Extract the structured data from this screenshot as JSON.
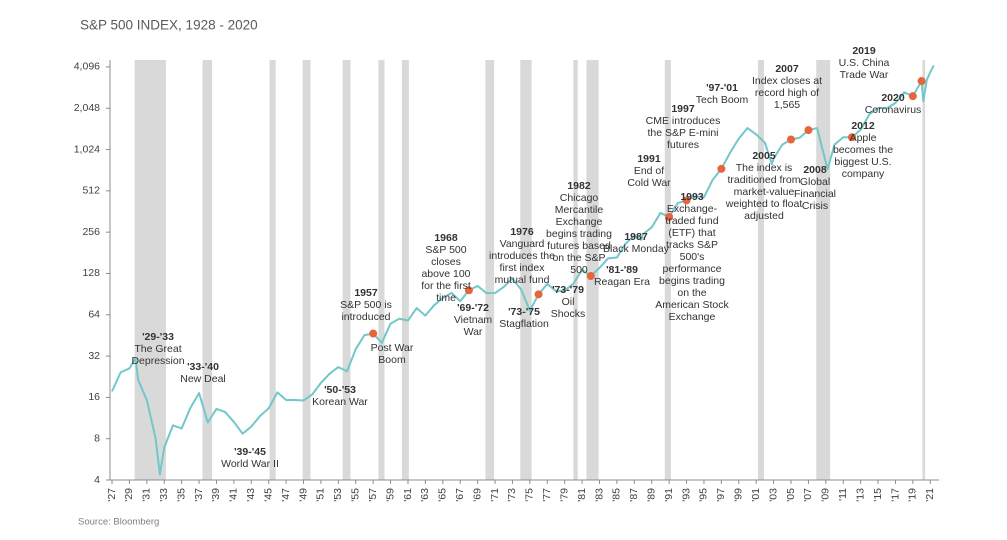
{
  "chart_data": {
    "type": "line",
    "title": "S&P 500 INDEX, 1928 - 2020",
    "source": "Source: Bloomberg",
    "log_scale": true,
    "color": "#72c7c9",
    "band_color": "#d9d9d9",
    "x": [
      1927,
      1928,
      1929,
      1929.7,
      1930,
      1931,
      1932,
      1932.5,
      1933,
      1934,
      1935,
      1936,
      1937,
      1938,
      1939,
      1940,
      1941,
      1942,
      1943,
      1944,
      1945,
      1946,
      1947,
      1948,
      1949,
      1950,
      1951,
      1952,
      1953,
      1954,
      1955,
      1956,
      1957,
      1958,
      1959,
      1960,
      1961,
      1962,
      1963,
      1964,
      1965,
      1966,
      1967,
      1968,
      1969,
      1970,
      1971,
      1972,
      1973,
      1974,
      1975,
      1976,
      1977,
      1978,
      1979,
      1980,
      1981,
      1982,
      1983,
      1984,
      1985,
      1986,
      1987,
      1987.8,
      1988,
      1989,
      1990,
      1991,
      1992,
      1993,
      1994,
      1995,
      1996,
      1997,
      1998,
      1999,
      2000,
      2001,
      2002,
      2002.8,
      2003,
      2004,
      2005,
      2006,
      2007,
      2008,
      2009.2,
      2010,
      2011,
      2012,
      2013,
      2014,
      2015,
      2016,
      2017,
      2018,
      2019,
      2020,
      2020.2,
      2020.6,
      2021,
      2021.4
    ],
    "values": [
      17.7,
      24.4,
      26,
      31,
      21.5,
      15.3,
      8.1,
      4.4,
      6.9,
      10,
      9.5,
      13.4,
      17.2,
      10.5,
      13.2,
      12.5,
      10.6,
      8.7,
      9.8,
      11.7,
      13.3,
      17.4,
      15.3,
      15.3,
      15.2,
      16.8,
      20.4,
      23.8,
      26.6,
      24.8,
      36,
      45.5,
      46.7,
      40,
      55.2,
      59.9,
      58.1,
      71.6,
      63.1,
      75,
      84.8,
      92.4,
      80.3,
      96.5,
      103.9,
      92.1,
      92.2,
      102.1,
      118,
      97.6,
      68.6,
      90.2,
      107.5,
      95.1,
      96.1,
      107.9,
      135.8,
      122.6,
      140.6,
      164.9,
      167.2,
      211.3,
      242.2,
      225,
      247.1,
      277.7,
      353.4,
      330.2,
      417.1,
      435.7,
      466.5,
      459.3,
      615.9,
      740.7,
      970.4,
      1229,
      1469,
      1320,
      1148,
      800,
      880,
      1112,
      1212,
      1248,
      1418,
      1468,
      735,
      1115,
      1258,
      1258,
      1426,
      1848,
      2059,
      2044,
      2239,
      2674,
      2507,
      3231,
      2300,
      3300,
      3756,
      4200
    ],
    "xlim": [
      1927,
      2022
    ],
    "ylim": [
      4,
      4600
    ],
    "yticks": [
      4,
      8,
      16,
      32,
      64,
      128,
      256,
      512,
      {
        "value": 1024,
        "label": "1,024"
      },
      {
        "value": 2048,
        "label": "2,048"
      },
      {
        "value": 4096,
        "label": "4,096"
      }
    ],
    "xticks": [
      {
        "value": 1927,
        "label": "'27"
      },
      {
        "value": 1929,
        "label": "'29"
      },
      {
        "value": 1931,
        "label": "'31"
      },
      {
        "value": 1933,
        "label": "'33"
      },
      {
        "value": 1935,
        "label": "'35"
      },
      {
        "value": 1937,
        "label": "'37"
      },
      {
        "value": 1939,
        "label": "'39"
      },
      {
        "value": 1941,
        "label": "'41"
      },
      {
        "value": 1943,
        "label": "'43"
      },
      {
        "value": 1945,
        "label": "'45"
      },
      {
        "value": 1947,
        "label": "'47"
      },
      {
        "value": 1949,
        "label": "'49"
      },
      {
        "value": 1951,
        "label": "'51"
      },
      {
        "value": 1953,
        "label": "'53"
      },
      {
        "value": 1955,
        "label": "'55"
      },
      {
        "value": 1957,
        "label": "'57"
      },
      {
        "value": 1959,
        "label": "'59"
      },
      {
        "value": 1961,
        "label": "'61"
      },
      {
        "value": 1963,
        "label": "'63"
      },
      {
        "value": 1965,
        "label": "'65"
      },
      {
        "value": 1967,
        "label": "'67"
      },
      {
        "value": 1969,
        "label": "'69"
      },
      {
        "value": 1971,
        "label": "'71"
      },
      {
        "value": 1973,
        "label": "'73"
      },
      {
        "value": 1975,
        "label": "'75"
      },
      {
        "value": 1977,
        "label": "'77"
      },
      {
        "value": 1979,
        "label": "'79"
      },
      {
        "value": 1981,
        "label": "'81"
      },
      {
        "value": 1983,
        "label": "'83"
      },
      {
        "value": 1985,
        "label": "'85"
      },
      {
        "value": 1987,
        "label": "'87"
      },
      {
        "value": 1989,
        "label": "'89"
      },
      {
        "value": 1991,
        "label": "'91"
      },
      {
        "value": 1993,
        "label": "'93"
      },
      {
        "value": 1995,
        "label": "'95"
      },
      {
        "value": 1997,
        "label": "'97"
      },
      {
        "value": 1999,
        "label": "'99"
      },
      {
        "value": 2001,
        "label": "'01"
      },
      {
        "value": 2003,
        "label": "'03"
      },
      {
        "value": 2005,
        "label": "'05"
      },
      {
        "value": 2007,
        "label": "'07"
      },
      {
        "value": 2009,
        "label": "'09"
      },
      {
        "value": 2011,
        "label": "'11"
      },
      {
        "value": 2013,
        "label": "'13"
      },
      {
        "value": 2015,
        "label": "'15"
      },
      {
        "value": 2017,
        "label": "'17"
      },
      {
        "value": 2019,
        "label": "'19"
      },
      {
        "value": 2021,
        "label": "'21"
      }
    ],
    "shaded_periods": [
      [
        1929.6,
        1933.2
      ],
      [
        1937.4,
        1938.5
      ],
      [
        1945.1,
        1945.8
      ],
      [
        1948.9,
        1949.8
      ],
      [
        1953.5,
        1954.4
      ],
      [
        1957.6,
        1958.3
      ],
      [
        1960.3,
        1961.1
      ],
      [
        1969.9,
        1970.9
      ],
      [
        1973.9,
        1975.2
      ],
      [
        1980.0,
        1980.5
      ],
      [
        1981.5,
        1982.9
      ],
      [
        1990.5,
        1991.2
      ],
      [
        2001.2,
        2001.9
      ],
      [
        2007.9,
        2009.5
      ],
      [
        2020.1,
        2020.4
      ]
    ],
    "markers": {
      "color": "#e8643c",
      "x": [
        1957,
        1968,
        1976,
        1982,
        1991,
        1993,
        1997,
        2005,
        2007,
        2012,
        2019,
        2020
      ],
      "values": [
        46.7,
        96.5,
        90.2,
        122.6,
        330.2,
        435.7,
        740.7,
        1212,
        1418,
        1258,
        2507,
        3231
      ]
    },
    "annotations": [
      {
        "head": "'29-'33",
        "lines": [
          "The Great",
          "Depression"
        ]
      },
      {
        "head": "'33-'40",
        "lines": [
          "New Deal"
        ]
      },
      {
        "head": "'39-'45",
        "lines": [
          "World War II"
        ]
      },
      {
        "head": "'50-'53",
        "lines": [
          "Korean War"
        ]
      },
      {
        "head": "1957",
        "lines": [
          "S&P 500 is",
          "introduced"
        ]
      },
      {
        "lines": [
          "Post War",
          "Boom"
        ]
      },
      {
        "head": "1968",
        "lines": [
          "S&P 500",
          "closes",
          "above 100",
          "for the first",
          "time"
        ]
      },
      {
        "head": "'69-'72",
        "lines": [
          "Vietnam",
          "War"
        ]
      },
      {
        "head": "1976",
        "lines": [
          "Vanguard",
          "introduces the",
          "first index",
          "mutual fund"
        ]
      },
      {
        "head": "'73-'75",
        "lines": [
          "Stagflation"
        ]
      },
      {
        "head": "1982",
        "lines": [
          "Chicago",
          "Mercantile",
          "Exchange",
          "begins trading",
          "futures based",
          "on the S&P",
          "500"
        ]
      },
      {
        "head": "'73-'79",
        "lines": [
          "Oil",
          "Shocks"
        ]
      },
      {
        "head": "1987",
        "lines": [
          "Black Monday"
        ]
      },
      {
        "head": "'81-'89",
        "lines": [
          "Reagan Era"
        ]
      },
      {
        "head": "1991",
        "lines": [
          "End of",
          "Cold War"
        ]
      },
      {
        "head": "1993",
        "lines": [
          "Exchange-",
          "traded fund",
          "(ETF) that",
          "tracks S&P",
          "500's",
          "performance",
          "begins trading",
          "on the",
          "American Stock",
          "Exchange"
        ]
      },
      {
        "head": "1997",
        "lines": [
          "CME introduces",
          "the S&P E-mini",
          "futures"
        ]
      },
      {
        "head": "'97-'01",
        "lines": [
          "Tech Boom"
        ]
      },
      {
        "head": "2005",
        "lines": [
          "The index is",
          "traditioned from",
          "market-value",
          "weighted to float",
          "adjusted"
        ]
      },
      {
        "head": "2007",
        "lines": [
          "Index closes at",
          "record high of",
          "1,565"
        ]
      },
      {
        "head": "2008",
        "lines": [
          "Global",
          "Financial",
          "Crisis"
        ]
      },
      {
        "head": "2012",
        "lines": [
          "Apple",
          "becomes the",
          "biggest U.S.",
          "company"
        ]
      },
      {
        "head": "2019",
        "lines": [
          "U.S. China",
          "Trade War"
        ]
      },
      {
        "head": "2020",
        "lines": [
          "Coronavirus"
        ]
      }
    ]
  }
}
